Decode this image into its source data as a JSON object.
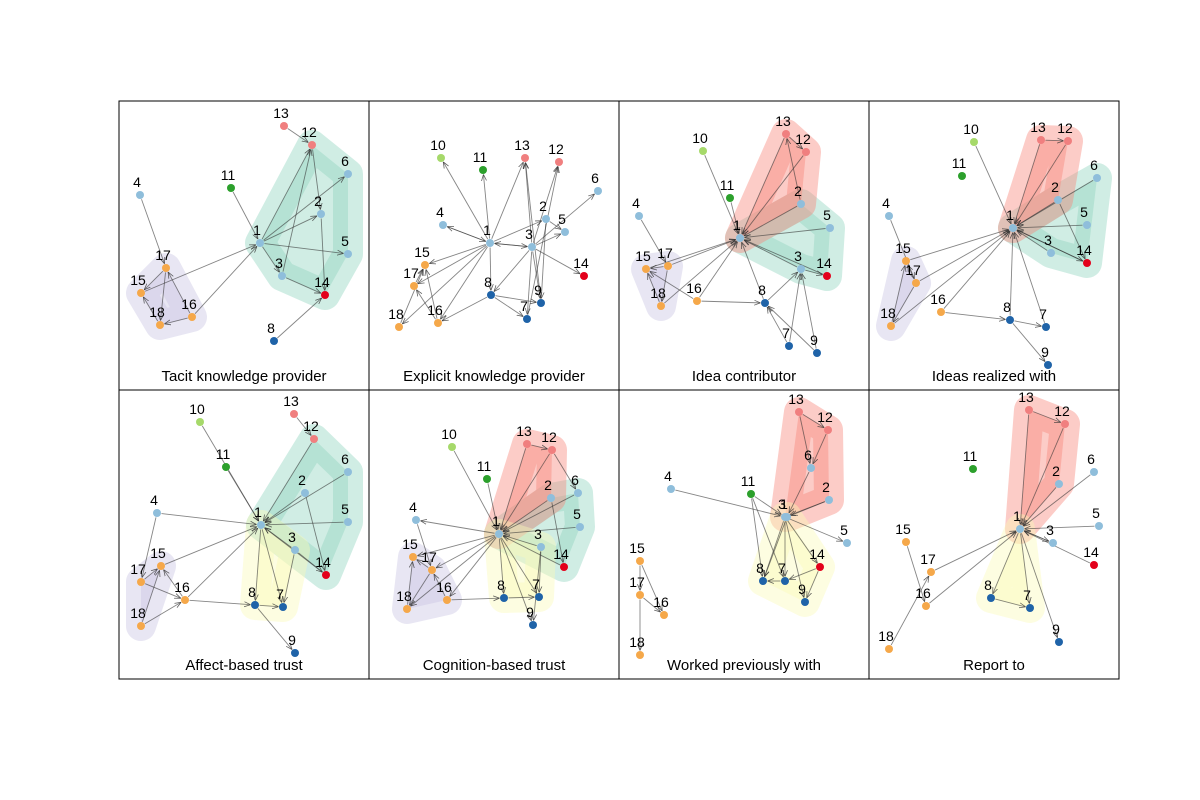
{
  "colors": {
    "lightblue": "#8fbedb",
    "darkblue": "#1f63a8",
    "orange": "#f5a84a",
    "lightgreen": "#a6d96a",
    "green": "#2ca02c",
    "pink": "#f07f7f",
    "red": "#e3001b",
    "hull_purple": "#c8c4e3",
    "hull_teal": "#8fd3bf",
    "hull_salmon": "#f7857a",
    "hull_yellow": "#fbfbb8"
  },
  "node_colors": {
    "1": "lightblue",
    "2": "lightblue",
    "3": "lightblue",
    "4": "lightblue",
    "5": "lightblue",
    "6": "lightblue",
    "7": "darkblue",
    "8": "darkblue",
    "9": "darkblue",
    "10": "lightgreen",
    "11": "green",
    "12": "pink",
    "13": "pink",
    "14": "red",
    "15": "orange",
    "16": "orange",
    "17": "orange",
    "18": "orange"
  },
  "panels": [
    {
      "title": "Tacit knowledge provider",
      "hulls": [
        {
          "color": "hull_purple",
          "nodes": [
            "15",
            "17",
            "18",
            "16"
          ]
        },
        {
          "color": "hull_teal",
          "nodes": [
            "12",
            "6",
            "2",
            "5",
            "1",
            "3",
            "14"
          ]
        }
      ],
      "nodes": [
        "1",
        "2",
        "3",
        "4",
        "5",
        "6",
        "8",
        "11",
        "12",
        "13",
        "14",
        "15",
        "16",
        "17",
        "18"
      ],
      "edges": [
        [
          "4",
          "17"
        ],
        [
          "17",
          "15"
        ],
        [
          "17",
          "18"
        ],
        [
          "16",
          "18"
        ],
        [
          "18",
          "15"
        ],
        [
          "16",
          "17"
        ],
        [
          "16",
          "1"
        ],
        [
          "15",
          "1"
        ],
        [
          "11",
          "1"
        ],
        [
          "13",
          "12"
        ],
        [
          "1",
          "12"
        ],
        [
          "1",
          "6"
        ],
        [
          "1",
          "2"
        ],
        [
          "1",
          "5"
        ],
        [
          "1",
          "3"
        ],
        [
          "3",
          "14"
        ],
        [
          "2",
          "14"
        ],
        [
          "12",
          "2"
        ],
        [
          "8",
          "14"
        ],
        [
          "3",
          "12"
        ]
      ]
    },
    {
      "title": "Explicit knowledge provider",
      "hulls": [],
      "nodes": [
        "1",
        "2",
        "3",
        "4",
        "5",
        "6",
        "7",
        "8",
        "9",
        "10",
        "11",
        "12",
        "13",
        "14",
        "15",
        "16",
        "17",
        "18"
      ],
      "edges": [
        [
          "1",
          "10"
        ],
        [
          "1",
          "11"
        ],
        [
          "1",
          "13"
        ],
        [
          "1",
          "4"
        ],
        [
          "1",
          "15"
        ],
        [
          "1",
          "17"
        ],
        [
          "1",
          "16"
        ],
        [
          "1",
          "18"
        ],
        [
          "1",
          "8"
        ],
        [
          "1",
          "3"
        ],
        [
          "1",
          "2"
        ],
        [
          "3",
          "12"
        ],
        [
          "3",
          "13"
        ],
        [
          "3",
          "5"
        ],
        [
          "3",
          "6"
        ],
        [
          "3",
          "14"
        ],
        [
          "3",
          "9"
        ],
        [
          "3",
          "7"
        ],
        [
          "3",
          "8"
        ],
        [
          "2",
          "5"
        ],
        [
          "8",
          "7"
        ],
        [
          "8",
          "9"
        ],
        [
          "4",
          "1"
        ],
        [
          "17",
          "15"
        ],
        [
          "18",
          "15"
        ],
        [
          "16",
          "17"
        ],
        [
          "16",
          "15"
        ],
        [
          "9",
          "13"
        ],
        [
          "7",
          "12"
        ],
        [
          "8",
          "16"
        ],
        [
          "2",
          "9"
        ],
        [
          "3",
          "1"
        ]
      ]
    },
    {
      "title": "Idea contributor",
      "hulls": [
        {
          "color": "hull_purple",
          "nodes": [
            "15",
            "17",
            "18"
          ]
        },
        {
          "color": "hull_teal",
          "nodes": [
            "2",
            "5",
            "3",
            "14",
            "1"
          ]
        },
        {
          "color": "hull_salmon",
          "nodes": [
            "13",
            "12",
            "2",
            "1"
          ]
        }
      ],
      "nodes": [
        "1",
        "2",
        "3",
        "4",
        "5",
        "7",
        "8",
        "9",
        "10",
        "11",
        "12",
        "13",
        "14",
        "15",
        "16",
        "17",
        "18"
      ],
      "edges": [
        [
          "10",
          "1"
        ],
        [
          "11",
          "1"
        ],
        [
          "13",
          "1"
        ],
        [
          "12",
          "1"
        ],
        [
          "13",
          "12"
        ],
        [
          "2",
          "1"
        ],
        [
          "5",
          "1"
        ],
        [
          "3",
          "1"
        ],
        [
          "14",
          "1"
        ],
        [
          "4",
          "17"
        ],
        [
          "17",
          "1"
        ],
        [
          "15",
          "1"
        ],
        [
          "16",
          "1"
        ],
        [
          "18",
          "1"
        ],
        [
          "8",
          "1"
        ],
        [
          "7",
          "8"
        ],
        [
          "9",
          "3"
        ],
        [
          "7",
          "3"
        ],
        [
          "8",
          "3"
        ],
        [
          "16",
          "8"
        ],
        [
          "17",
          "15"
        ],
        [
          "18",
          "15"
        ],
        [
          "16",
          "15"
        ],
        [
          "17",
          "18"
        ],
        [
          "3",
          "14"
        ],
        [
          "2",
          "13"
        ],
        [
          "9",
          "8"
        ]
      ]
    },
    {
      "title": "Ideas realized with",
      "hulls": [
        {
          "color": "hull_purple",
          "nodes": [
            "15",
            "17",
            "18"
          ]
        },
        {
          "color": "hull_teal",
          "nodes": [
            "6",
            "5",
            "2",
            "3",
            "14",
            "1"
          ]
        },
        {
          "color": "hull_salmon",
          "nodes": [
            "13",
            "12",
            "2",
            "1"
          ]
        }
      ],
      "nodes": [
        "1",
        "2",
        "3",
        "4",
        "5",
        "6",
        "7",
        "8",
        "9",
        "10",
        "11",
        "12",
        "13",
        "14",
        "15",
        "16",
        "17",
        "18"
      ],
      "edges": [
        [
          "10",
          "1"
        ],
        [
          "13",
          "1"
        ],
        [
          "12",
          "1"
        ],
        [
          "13",
          "12"
        ],
        [
          "2",
          "1"
        ],
        [
          "6",
          "1"
        ],
        [
          "5",
          "1"
        ],
        [
          "3",
          "1"
        ],
        [
          "14",
          "1"
        ],
        [
          "1",
          "14"
        ],
        [
          "2",
          "14"
        ],
        [
          "4",
          "17"
        ],
        [
          "15",
          "1"
        ],
        [
          "17",
          "1"
        ],
        [
          "16",
          "1"
        ],
        [
          "18",
          "1"
        ],
        [
          "8",
          "1"
        ],
        [
          "8",
          "7"
        ],
        [
          "8",
          "9"
        ],
        [
          "16",
          "8"
        ],
        [
          "17",
          "15"
        ],
        [
          "18",
          "15"
        ],
        [
          "17",
          "18"
        ],
        [
          "7",
          "1"
        ]
      ]
    },
    {
      "title": "Affect-based trust",
      "hulls": [
        {
          "color": "hull_purple",
          "nodes": [
            "15",
            "17",
            "18"
          ]
        },
        {
          "color": "hull_teal",
          "nodes": [
            "12",
            "6",
            "2",
            "5",
            "3",
            "14",
            "1"
          ]
        },
        {
          "color": "hull_yellow",
          "nodes": [
            "1",
            "3",
            "8",
            "7"
          ]
        }
      ],
      "nodes": [
        "1",
        "2",
        "3",
        "4",
        "5",
        "6",
        "7",
        "8",
        "9",
        "10",
        "11",
        "12",
        "13",
        "14",
        "15",
        "16",
        "17",
        "18"
      ],
      "edges": [
        [
          "10",
          "1"
        ],
        [
          "11",
          "1"
        ],
        [
          "13",
          "12"
        ],
        [
          "12",
          "1"
        ],
        [
          "2",
          "1"
        ],
        [
          "6",
          "1"
        ],
        [
          "5",
          "1"
        ],
        [
          "3",
          "1"
        ],
        [
          "14",
          "1"
        ],
        [
          "4",
          "1"
        ],
        [
          "4",
          "17"
        ],
        [
          "15",
          "1"
        ],
        [
          "16",
          "1"
        ],
        [
          "17",
          "16"
        ],
        [
          "18",
          "15"
        ],
        [
          "17",
          "15"
        ],
        [
          "16",
          "8"
        ],
        [
          "8",
          "7"
        ],
        [
          "8",
          "9"
        ],
        [
          "1",
          "8"
        ],
        [
          "1",
          "7"
        ],
        [
          "3",
          "7"
        ],
        [
          "2",
          "14"
        ],
        [
          "3",
          "14"
        ],
        [
          "18",
          "16"
        ],
        [
          "16",
          "15"
        ]
      ]
    },
    {
      "title": "Cognition-based trust",
      "hulls": [
        {
          "color": "hull_purple",
          "nodes": [
            "15",
            "17",
            "18",
            "16"
          ]
        },
        {
          "color": "hull_teal",
          "nodes": [
            "6",
            "2",
            "5",
            "3",
            "14",
            "1"
          ]
        },
        {
          "color": "hull_salmon",
          "nodes": [
            "13",
            "12",
            "2",
            "1"
          ]
        },
        {
          "color": "hull_yellow",
          "nodes": [
            "1",
            "3",
            "8",
            "7"
          ]
        }
      ],
      "nodes": [
        "1",
        "2",
        "3",
        "4",
        "5",
        "6",
        "7",
        "8",
        "9",
        "10",
        "11",
        "12",
        "13",
        "14",
        "15",
        "16",
        "17",
        "18"
      ],
      "edges": [
        [
          "10",
          "1"
        ],
        [
          "11",
          "1"
        ],
        [
          "13",
          "1"
        ],
        [
          "12",
          "1"
        ],
        [
          "13",
          "12"
        ],
        [
          "2",
          "1"
        ],
        [
          "6",
          "1"
        ],
        [
          "5",
          "1"
        ],
        [
          "3",
          "1"
        ],
        [
          "14",
          "1"
        ],
        [
          "1",
          "4"
        ],
        [
          "1",
          "15"
        ],
        [
          "1",
          "17"
        ],
        [
          "1",
          "16"
        ],
        [
          "1",
          "18"
        ],
        [
          "1",
          "8"
        ],
        [
          "1",
          "7"
        ],
        [
          "1",
          "9"
        ],
        [
          "3",
          "7"
        ],
        [
          "3",
          "9"
        ],
        [
          "8",
          "7"
        ],
        [
          "16",
          "8"
        ],
        [
          "17",
          "15"
        ],
        [
          "18",
          "15"
        ],
        [
          "17",
          "18"
        ],
        [
          "16",
          "17"
        ],
        [
          "2",
          "14"
        ],
        [
          "4",
          "17"
        ],
        [
          "12",
          "6"
        ]
      ]
    },
    {
      "title": "Worked previously with",
      "hulls": [
        {
          "color": "hull_salmon",
          "nodes": [
            "13",
            "12",
            "6",
            "2",
            "1",
            "3"
          ]
        },
        {
          "color": "hull_yellow",
          "nodes": [
            "1",
            "3",
            "8",
            "7",
            "9",
            "14"
          ]
        }
      ],
      "nodes": [
        "1",
        "2",
        "3",
        "4",
        "5",
        "6",
        "7",
        "8",
        "9",
        "11",
        "12",
        "13",
        "14",
        "15",
        "16",
        "17",
        "18"
      ],
      "edges": [
        [
          "4",
          "3"
        ],
        [
          "11",
          "3"
        ],
        [
          "11",
          "7"
        ],
        [
          "11",
          "8"
        ],
        [
          "13",
          "6"
        ],
        [
          "12",
          "6"
        ],
        [
          "13",
          "12"
        ],
        [
          "6",
          "1"
        ],
        [
          "2",
          "1"
        ],
        [
          "1",
          "3"
        ],
        [
          "3",
          "5"
        ],
        [
          "3",
          "14"
        ],
        [
          "3",
          "8"
        ],
        [
          "3",
          "7"
        ],
        [
          "3",
          "9"
        ],
        [
          "1",
          "8"
        ],
        [
          "14",
          "9"
        ],
        [
          "7",
          "8"
        ],
        [
          "15",
          "16"
        ],
        [
          "17",
          "16"
        ],
        [
          "17",
          "18"
        ],
        [
          "15",
          "17"
        ],
        [
          "2",
          "3"
        ],
        [
          "14",
          "7"
        ]
      ]
    },
    {
      "title": "Report to",
      "hulls": [
        {
          "color": "hull_salmon",
          "nodes": [
            "13",
            "12",
            "2",
            "1"
          ]
        },
        {
          "color": "hull_yellow",
          "nodes": [
            "1",
            "8",
            "7"
          ]
        }
      ],
      "nodes": [
        "1",
        "2",
        "3",
        "5",
        "6",
        "7",
        "8",
        "9",
        "11",
        "12",
        "13",
        "14",
        "15",
        "16",
        "17",
        "18"
      ],
      "edges": [
        [
          "13",
          "12"
        ],
        [
          "13",
          "1"
        ],
        [
          "12",
          "1"
        ],
        [
          "2",
          "1"
        ],
        [
          "6",
          "1"
        ],
        [
          "5",
          "1"
        ],
        [
          "3",
          "1"
        ],
        [
          "14",
          "1"
        ],
        [
          "15",
          "16"
        ],
        [
          "17",
          "1"
        ],
        [
          "16",
          "1"
        ],
        [
          "18",
          "17"
        ],
        [
          "1",
          "8"
        ],
        [
          "1",
          "7"
        ],
        [
          "1",
          "9"
        ],
        [
          "8",
          "7"
        ],
        [
          "1",
          "3"
        ]
      ]
    }
  ]
}
